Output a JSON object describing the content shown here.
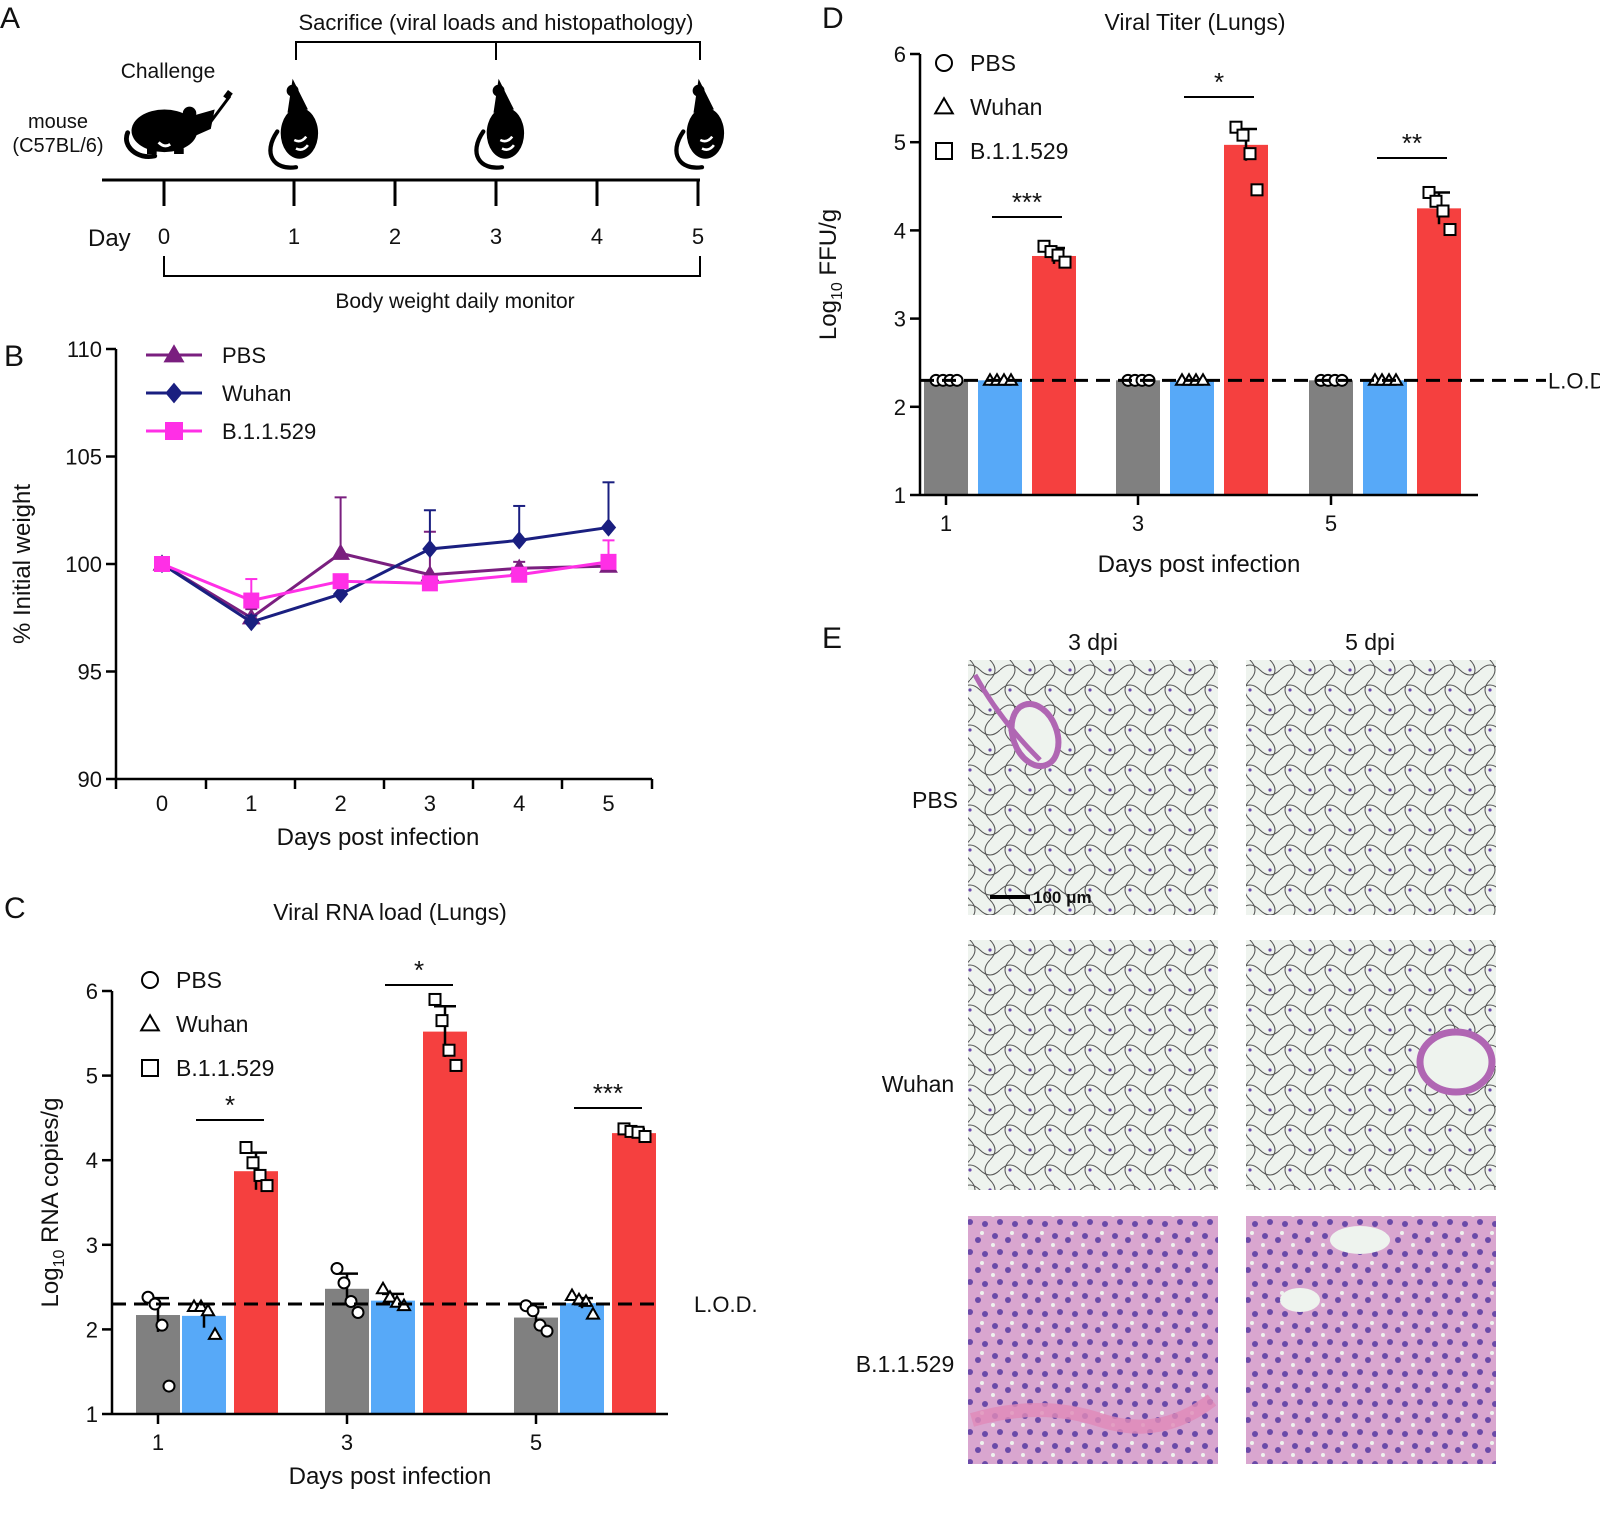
{
  "colors": {
    "pbs_bar": "#808080",
    "wuhan_bar": "#57a9f8",
    "omicron_bar": "#f5403f",
    "pbs_line": "#7a1f7f",
    "wuhan_line": "#1a1f80",
    "omicron_line": "#ff2fe6",
    "tissue_pink": "#d9a6cf",
    "tissue_purple": "#6a4aa8"
  },
  "panelA": {
    "letter": "A",
    "sacrifice_label": "Sacrifice (viral loads and histopathology)",
    "challenge_label": "Challenge",
    "mouse_label": "mouse",
    "strain_label": "(C57BL/6)",
    "day_label": "Day",
    "days": [
      "0",
      "1",
      "2",
      "3",
      "4",
      "5"
    ],
    "monitor_label": "Body weight daily monitor",
    "icons": [
      "mouse-injection-icon",
      "mouse-sacrifice-icon"
    ]
  },
  "panelE": {
    "letter": "E",
    "columns": [
      "3 dpi",
      "5 dpi"
    ],
    "rows": [
      "PBS",
      "Wuhan",
      "B.1.1.529"
    ],
    "scale_bar": "100 μm"
  },
  "chart_data": [
    {
      "id": "B",
      "letter": "B",
      "type": "line",
      "xlabel": "Days post infection",
      "ylabel": "% Initial weight",
      "ylim": [
        90,
        110
      ],
      "yticks": [
        90,
        95,
        100,
        105,
        110
      ],
      "x": [
        0,
        1,
        2,
        3,
        4,
        5
      ],
      "legend_position": "top-left",
      "series": [
        {
          "name": "PBS",
          "marker": "triangle",
          "values": [
            100,
            97.5,
            100.5,
            99.5,
            99.8,
            99.9
          ],
          "err": [
            0.2,
            0.4,
            2.6,
            2.0,
            0.3,
            0.3
          ]
        },
        {
          "name": "Wuhan",
          "marker": "diamond",
          "values": [
            100,
            97.3,
            98.6,
            100.7,
            101.1,
            101.7
          ],
          "err": [
            0.2,
            0.3,
            0.2,
            1.8,
            1.6,
            2.1
          ]
        },
        {
          "name": "B.1.1.529",
          "marker": "square",
          "values": [
            100,
            98.3,
            99.2,
            99.1,
            99.5,
            100.1
          ],
          "err": [
            0.2,
            1.0,
            0.3,
            0.3,
            0.2,
            1.0
          ]
        }
      ]
    },
    {
      "id": "C",
      "letter": "C",
      "type": "bar",
      "title": "Viral RNA load (Lungs)",
      "xlabel": "Days post infection",
      "ylabel_prefix": "Log",
      "ylabel_sub": "10",
      "ylabel_rest": " RNA copies/g",
      "ylim": [
        1,
        6
      ],
      "yticks": [
        1,
        2,
        3,
        4,
        5,
        6
      ],
      "categories": [
        "1",
        "3",
        "5"
      ],
      "lod": 2.3,
      "lod_label": "L.O.D.",
      "significance": [
        "*",
        "*",
        "***"
      ],
      "legend_position": "top-left",
      "series": [
        {
          "name": "PBS",
          "marker": "circle",
          "values": [
            2.17,
            2.48,
            2.14
          ],
          "err": [
            0.2,
            0.18,
            0.12
          ],
          "points": [
            [
              2.38,
              2.3,
              2.05,
              1.33
            ],
            [
              2.72,
              2.55,
              2.33,
              2.2
            ],
            [
              2.28,
              2.22,
              2.05,
              1.98
            ]
          ]
        },
        {
          "name": "Wuhan",
          "marker": "triangle",
          "values": [
            2.16,
            2.34,
            2.31
          ],
          "err": [
            0.14,
            0.08,
            0.06
          ],
          "points": [
            [
              2.27,
              2.27,
              2.22,
              1.94
            ],
            [
              2.48,
              2.38,
              2.32,
              2.28
            ],
            [
              2.4,
              2.35,
              2.33,
              2.18
            ]
          ]
        },
        {
          "name": "B.1.1.529",
          "marker": "square",
          "values": [
            3.87,
            5.52,
            4.32
          ],
          "err": [
            0.22,
            0.3,
            0.05
          ],
          "points": [
            [
              4.15,
              3.97,
              3.82,
              3.7
            ],
            [
              5.9,
              5.65,
              5.3,
              5.12
            ],
            [
              4.37,
              4.34,
              4.33,
              4.28
            ]
          ]
        }
      ]
    },
    {
      "id": "D",
      "letter": "D",
      "type": "bar",
      "title": "Viral Titer (Lungs)",
      "xlabel": "Days post infection",
      "ylabel_prefix": "Log",
      "ylabel_sub": "10",
      "ylabel_rest": " FFU/g",
      "ylim": [
        1,
        6
      ],
      "yticks": [
        1,
        2,
        3,
        4,
        5,
        6
      ],
      "categories": [
        "1",
        "3",
        "5"
      ],
      "lod": 2.3,
      "lod_label": "L.O.D.",
      "significance": [
        "***",
        "*",
        "**"
      ],
      "legend_position": "top-left",
      "series": [
        {
          "name": "PBS",
          "marker": "circle",
          "values": [
            2.3,
            2.3,
            2.3
          ],
          "err": [
            0,
            0,
            0
          ],
          "points": [
            [
              2.3,
              2.3,
              2.3,
              2.3
            ],
            [
              2.3,
              2.3,
              2.3,
              2.3
            ],
            [
              2.3,
              2.3,
              2.3,
              2.3
            ]
          ]
        },
        {
          "name": "Wuhan",
          "marker": "triangle",
          "values": [
            2.3,
            2.3,
            2.3
          ],
          "err": [
            0,
            0,
            0
          ],
          "points": [
            [
              2.3,
              2.3,
              2.3,
              2.3
            ],
            [
              2.3,
              2.3,
              2.3,
              2.3
            ],
            [
              2.3,
              2.3,
              2.3,
              2.3
            ]
          ]
        },
        {
          "name": "B.1.1.529",
          "marker": "square",
          "values": [
            3.71,
            4.97,
            4.25
          ],
          "err": [
            0.09,
            0.18,
            0.18
          ],
          "points": [
            [
              3.82,
              3.76,
              3.72,
              3.64
            ],
            [
              5.17,
              5.08,
              4.87,
              4.46
            ],
            [
              4.43,
              4.33,
              4.22,
              4.01
            ]
          ]
        }
      ]
    }
  ]
}
